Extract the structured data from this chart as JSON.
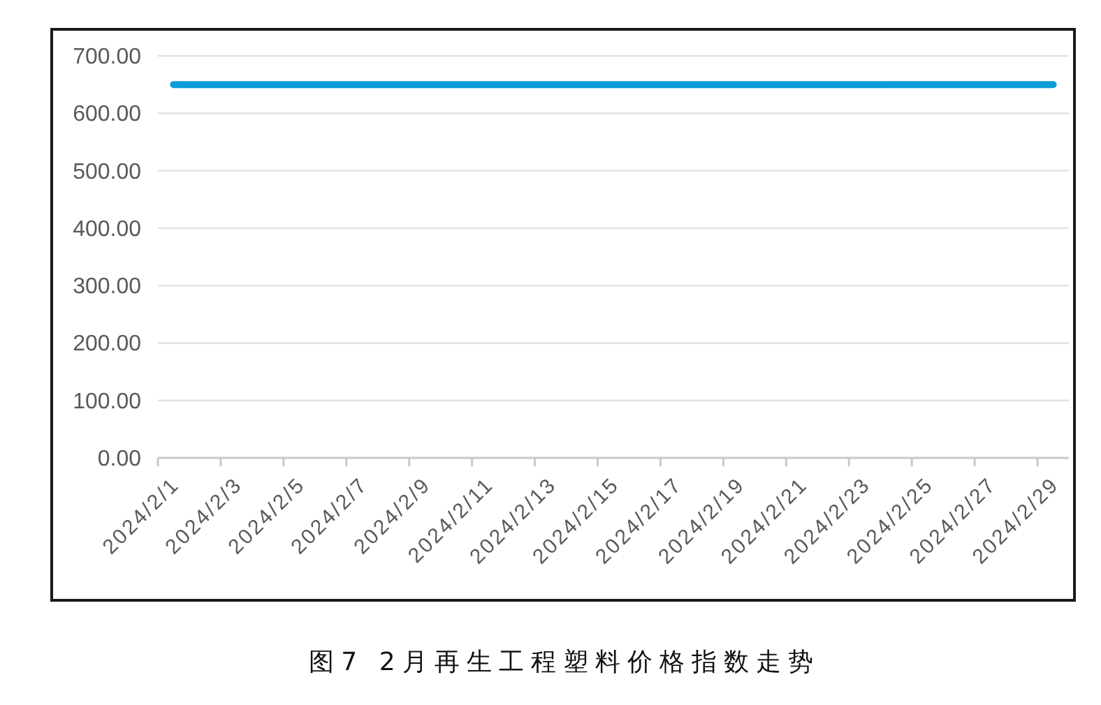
{
  "chart_data": {
    "type": "line",
    "title": "图7 2月再生工程塑料价格指数走势",
    "categories": [
      "2024/2/1",
      null,
      "2024/2/3",
      null,
      "2024/2/5",
      null,
      "2024/2/7",
      null,
      "2024/2/9",
      null,
      "2024/2/11",
      null,
      "2024/2/13",
      null,
      "2024/2/15",
      null,
      "2024/2/17",
      null,
      "2024/2/19",
      null,
      "2024/2/21",
      null,
      "2024/2/23",
      null,
      "2024/2/25",
      null,
      "2024/2/27",
      null,
      "2024/2/29"
    ],
    "values": [
      650,
      650,
      650,
      650,
      650,
      650,
      650,
      650,
      650,
      650,
      650,
      650,
      650,
      650,
      650,
      650,
      650,
      650,
      650,
      650,
      650,
      650,
      650,
      650,
      650,
      650,
      650,
      650,
      650
    ],
    "color": "#0a9ed9",
    "ylim": [
      0,
      700
    ],
    "yticks": [
      {
        "value": 0,
        "label": "0.00"
      },
      {
        "value": 100,
        "label": "100.00"
      },
      {
        "value": 200,
        "label": "200.00"
      },
      {
        "value": 300,
        "label": "300.00"
      },
      {
        "value": 400,
        "label": "400.00"
      },
      {
        "value": 500,
        "label": "500.00"
      },
      {
        "value": 600,
        "label": "600.00"
      },
      {
        "value": 700,
        "label": "700.00"
      }
    ],
    "grid": "y",
    "line_style": "solid"
  }
}
